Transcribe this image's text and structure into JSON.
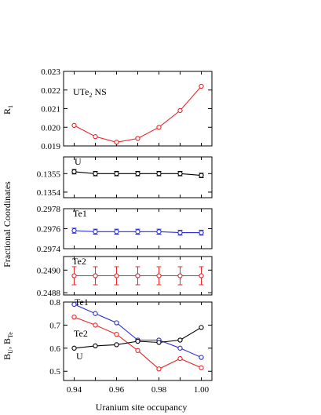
{
  "chart_data": {
    "type": "line",
    "xlabel": "Uranium site occupancy",
    "x": [
      0.94,
      0.95,
      0.96,
      0.97,
      0.98,
      0.99,
      1.0
    ],
    "x_ticks": [
      "0.94",
      "0.96",
      "0.98",
      "1.00"
    ],
    "xlim": [
      0.935,
      1.005
    ],
    "shared_ylabel": "Fractional Coordinates",
    "panels": [
      {
        "id": "r1",
        "ylabel": "R",
        "ylabel_sub": "1",
        "annotation": {
          "text": "UTe",
          "sub": "2",
          "tail": " NS"
        },
        "ylim": [
          0.019,
          0.023
        ],
        "y_ticks": [
          "0.023",
          "0.022",
          "0.021",
          "0.020",
          "0.019"
        ],
        "series": [
          {
            "color": "#e8262b",
            "values": [
              0.0201,
              0.0195,
              0.0192,
              0.0194,
              0.02,
              0.0209,
              0.0222
            ]
          }
        ]
      },
      {
        "id": "u",
        "annotation": {
          "text": "U"
        },
        "ylim": [
          0.13537,
          0.13559
        ],
        "y_ticks": [
          "0.1355",
          "0.1354"
        ],
        "series": [
          {
            "color": "#000000",
            "values": [
              0.13551,
              0.1355,
              0.1355,
              0.1355,
              0.1355,
              0.1355,
              0.13549
            ],
            "errors": [
              1.2e-05,
              1.2e-05,
              1.2e-05,
              1.2e-05,
              1.2e-05,
              1.2e-05,
              1.2e-05
            ]
          }
        ]
      },
      {
        "id": "te1",
        "annotation": {
          "text": "Te1"
        },
        "ylim": [
          0.2974,
          0.2978
        ],
        "y_ticks": [
          "0.2978",
          "0.2976",
          "0.2974"
        ],
        "series": [
          {
            "color": "#2a2ad8",
            "values": [
              0.29758,
              0.29757,
              0.29757,
              0.29757,
              0.29757,
              0.29756,
              0.29756
            ],
            "errors": [
              2.5e-05,
              2.5e-05,
              2.5e-05,
              2.5e-05,
              2.5e-05,
              2.5e-05,
              2.5e-05
            ]
          }
        ]
      },
      {
        "id": "te2",
        "annotation": {
          "text": "Te2"
        },
        "ylim": [
          0.24878,
          0.24912
        ],
        "y_ticks": [
          "0.2490",
          "0.2488"
        ],
        "series": [
          {
            "color": "#e8262b",
            "values": [
              0.24895,
              0.24895,
              0.24895,
              0.24895,
              0.24895,
              0.24895,
              0.24895
            ],
            "errors": [
              8e-05,
              8e-05,
              8e-05,
              8e-05,
              8e-05,
              8e-05,
              8e-05
            ]
          }
        ]
      },
      {
        "id": "b",
        "ylabel": "B",
        "ylabel_sub": "U",
        "ylabel_mid": ", B",
        "ylabel_sub2": "Te",
        "ylim": [
          0.46,
          0.8
        ],
        "y_ticks": [
          "0.8",
          "0.7",
          "0.6",
          "0.5"
        ],
        "series": [
          {
            "name": "Te1",
            "color": "#2a2ad8",
            "values": [
              0.79,
              0.75,
              0.71,
              0.635,
              0.635,
              0.6,
              0.56
            ]
          },
          {
            "name": "Te2",
            "color": "#e8262b",
            "values": [
              0.735,
              0.7,
              0.66,
              0.59,
              0.51,
              0.555,
              0.515
            ]
          },
          {
            "name": "U",
            "color": "#000000",
            "values": [
              0.6,
              0.61,
              0.615,
              0.63,
              0.625,
              0.635,
              0.69
            ]
          }
        ]
      }
    ]
  }
}
